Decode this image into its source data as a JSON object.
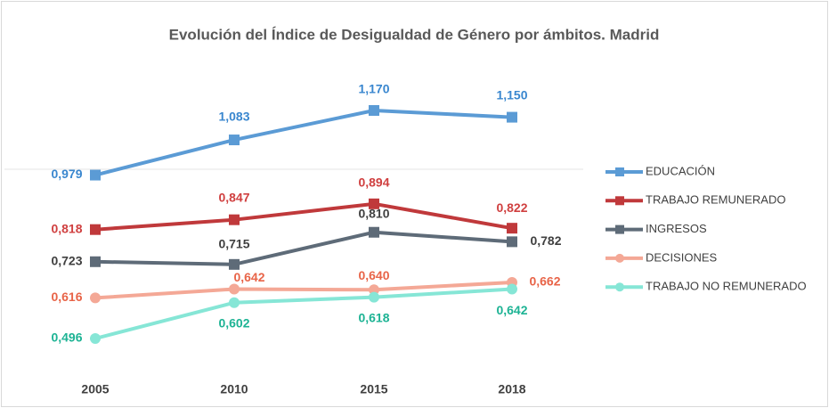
{
  "chart_data": {
    "type": "line",
    "title": "Evolución del Índice de Desigualdad de Género por ámbitos. Madrid",
    "categories": [
      "2005",
      "2010",
      "2015",
      "2018"
    ],
    "series": [
      {
        "name": "EDUCACIÓN",
        "color": "#5b9bd5",
        "label_color": "#3a87cf",
        "marker": "square",
        "values": [
          0.979,
          1.083,
          1.17,
          1.15
        ],
        "value_labels": [
          "0,979",
          "1,083",
          "1,170",
          "1,150"
        ]
      },
      {
        "name": "TRABAJO REMUNERADO",
        "color": "#c0393b",
        "label_color": "#d04040",
        "marker": "square",
        "values": [
          0.818,
          0.847,
          0.894,
          0.822
        ],
        "value_labels": [
          "0,818",
          "0,847",
          "0,894",
          "0,822"
        ]
      },
      {
        "name": "INGRESOS",
        "color": "#5e6b78",
        "label_color": "#404040",
        "marker": "square",
        "values": [
          0.723,
          0.715,
          0.81,
          0.782
        ],
        "value_labels": [
          "0,723",
          "0,715",
          "0,810",
          "0,782"
        ]
      },
      {
        "name": "DECISIONES",
        "color": "#f4a896",
        "label_color": "#e86448",
        "marker": "circle",
        "values": [
          0.616,
          0.642,
          0.64,
          0.662
        ],
        "value_labels": [
          "0,616",
          "0,642",
          "0,640",
          "0,662"
        ]
      },
      {
        "name": "TRABAJO NO REMUNERADO",
        "color": "#86e6d6",
        "label_color": "#1db394",
        "marker": "circle",
        "values": [
          0.496,
          0.602,
          0.618,
          0.642
        ],
        "value_labels": [
          "0,496",
          "0,602",
          "0,618",
          "0,642"
        ]
      }
    ],
    "legend": "right"
  }
}
